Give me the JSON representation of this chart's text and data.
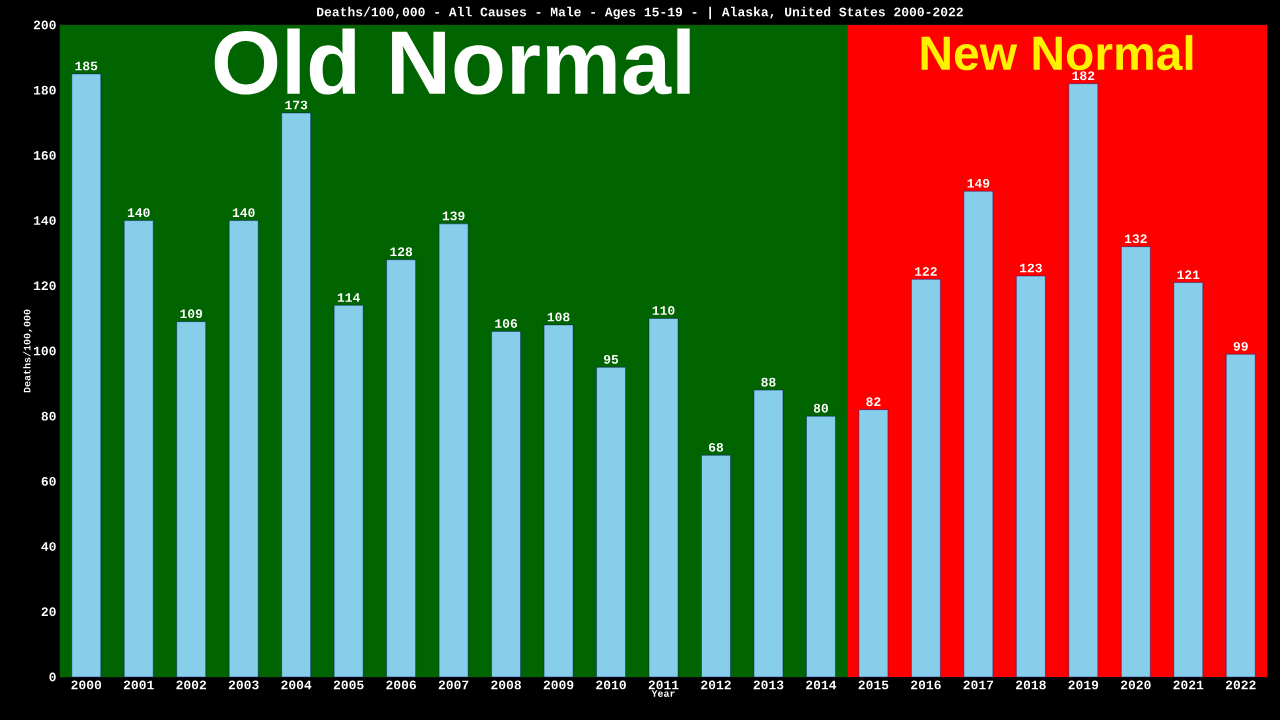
{
  "chart_data": {
    "type": "bar",
    "title": "Deaths/100,000 - All Causes - Male - Ages 15-19 -  | Alaska, United States 2000-2022",
    "xlabel": "Year",
    "ylabel": "Deaths/100,000",
    "categories": [
      "2000",
      "2001",
      "2002",
      "2003",
      "2004",
      "2005",
      "2006",
      "2007",
      "2008",
      "2009",
      "2010",
      "2011",
      "2012",
      "2013",
      "2014",
      "2015",
      "2016",
      "2017",
      "2018",
      "2019",
      "2020",
      "2021",
      "2022"
    ],
    "values": [
      185,
      140,
      109,
      140,
      173,
      114,
      128,
      139,
      106,
      108,
      95,
      110,
      68,
      88,
      80,
      82,
      122,
      149,
      123,
      182,
      132,
      121,
      99
    ],
    "color": "#87ceeb",
    "data_labels": true,
    "ylim": [
      0,
      200
    ],
    "yticks": [
      0,
      20,
      40,
      60,
      80,
      100,
      120,
      140,
      160,
      180,
      200
    ],
    "bands": [
      {
        "axis": "x",
        "from": "2000",
        "to": "2014",
        "label": "Old Normal",
        "color": "#006400"
      },
      {
        "axis": "x",
        "from": "2015",
        "to": "2022",
        "label": "New Normal",
        "color": "#ff0000"
      }
    ]
  }
}
